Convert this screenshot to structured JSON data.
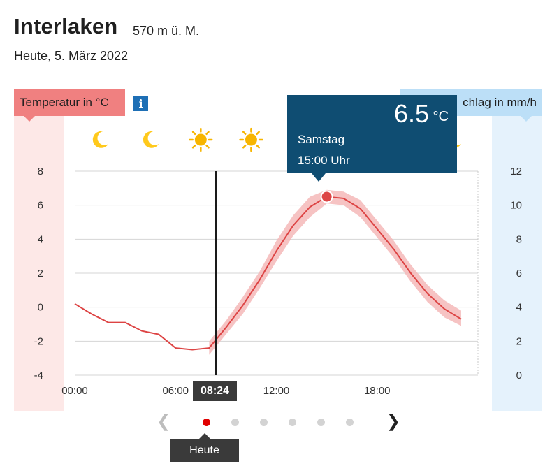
{
  "header": {
    "title": "Interlaken",
    "altitude": "570 m ü. M.",
    "date": "Heute, 5. März 2022"
  },
  "left_axis_label": "Temperatur in °C",
  "right_axis_label": "chlag in mm/h",
  "info_icon": "info-icon",
  "weather_icons": [
    "moon-icon",
    "moon-icon",
    "sun-icon",
    "sun-icon",
    "moon-icon"
  ],
  "colors": {
    "temp_line": "#dd4444",
    "temp_band": "#f5b8b8",
    "temp_axis_bg": "#fde8e7",
    "rain_axis_bg": "#e5f2fc",
    "tooltip_bg": "#0f4d72",
    "now_marker": "#1a1a1a"
  },
  "now_label": "08:24",
  "tooltip": {
    "value": "6.5",
    "unit": "°C",
    "day": "Samstag",
    "time": "15:00 Uhr"
  },
  "pagination": {
    "active_index": 0,
    "page_count": 6,
    "active_label": "Heute"
  },
  "chart_data": {
    "type": "line",
    "title": "",
    "xlabel": "",
    "ylabel": "Temperatur in °C",
    "y2label": "chlag in mm/h",
    "xlim": [
      0,
      24
    ],
    "ylim": [
      -4,
      8
    ],
    "y2lim": [
      0,
      12
    ],
    "x_ticks": [
      0,
      6,
      12,
      18
    ],
    "x_tick_labels": [
      "00:00",
      "06:00",
      "12:00",
      "18:00"
    ],
    "y_ticks": [
      -4,
      -2,
      0,
      2,
      4,
      6,
      8
    ],
    "y2_ticks": [
      0,
      2,
      4,
      6,
      8,
      10,
      12
    ],
    "grid": true,
    "now_x": 8.4,
    "highlight": {
      "x": 15,
      "y": 6.5
    },
    "series": [
      {
        "type": "line",
        "x": [
          0,
          1,
          2,
          3,
          4,
          5,
          6,
          7,
          8,
          9,
          10,
          11,
          12,
          13,
          14,
          15,
          16,
          17,
          18,
          19,
          20,
          21,
          22,
          23
        ],
        "values": [
          0.2,
          -0.4,
          -0.9,
          -0.9,
          -1.4,
          -1.6,
          -2.4,
          -2.5,
          -2.4,
          -1.2,
          0.1,
          1.6,
          3.3,
          4.8,
          5.9,
          6.5,
          6.4,
          5.8,
          4.6,
          3.4,
          2.0,
          0.8,
          -0.1,
          -0.7
        ]
      },
      {
        "type": "band",
        "x": [
          8,
          9,
          10,
          11,
          12,
          13,
          14,
          15,
          16,
          17,
          18,
          19,
          20,
          21,
          22,
          23
        ],
        "lower": [
          -2.8,
          -1.6,
          -0.4,
          1.1,
          2.7,
          4.2,
          5.3,
          6.1,
          6.0,
          5.3,
          4.1,
          2.9,
          1.5,
          0.3,
          -0.6,
          -1.1
        ],
        "upper": [
          -2.0,
          -0.8,
          0.6,
          2.1,
          3.9,
          5.4,
          6.5,
          6.9,
          6.8,
          6.3,
          5.1,
          3.9,
          2.5,
          1.3,
          0.4,
          -0.2
        ]
      }
    ],
    "hours_with_icons": [
      1.5,
      4.5,
      7.5,
      10.5,
      22.5
    ]
  }
}
